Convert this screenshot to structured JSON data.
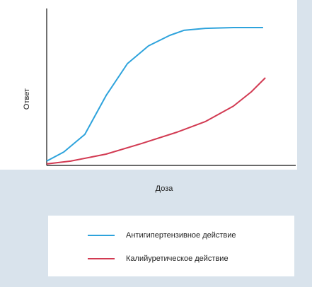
{
  "chart_data": {
    "type": "line",
    "xlabel": "Доза",
    "ylabel": "Ответ",
    "xlim": [
      0,
      100
    ],
    "ylim": [
      0,
      100
    ],
    "series": [
      {
        "name": "Антигипертензивное действие",
        "color": "#2ea3dc",
        "x": [
          0,
          6.9,
          15.4,
          24,
          32.6,
          41.1,
          49.7,
          55.4,
          64,
          75.4,
          87.4
        ],
        "values": [
          2.3,
          8.2,
          19.5,
          44.5,
          65,
          76.4,
          83.2,
          86.4,
          87.7,
          88.2,
          88.2
        ]
      },
      {
        "name": "Калийуретическое действие",
        "color": "#d23a52",
        "x": [
          0,
          9.7,
          24,
          38.3,
          52.6,
          64,
          75.4,
          82.6,
          88.3
        ],
        "values": [
          0.5,
          2.3,
          6.8,
          13.6,
          20.9,
          27.7,
          37.7,
          46.8,
          55.9
        ]
      }
    ]
  }
}
